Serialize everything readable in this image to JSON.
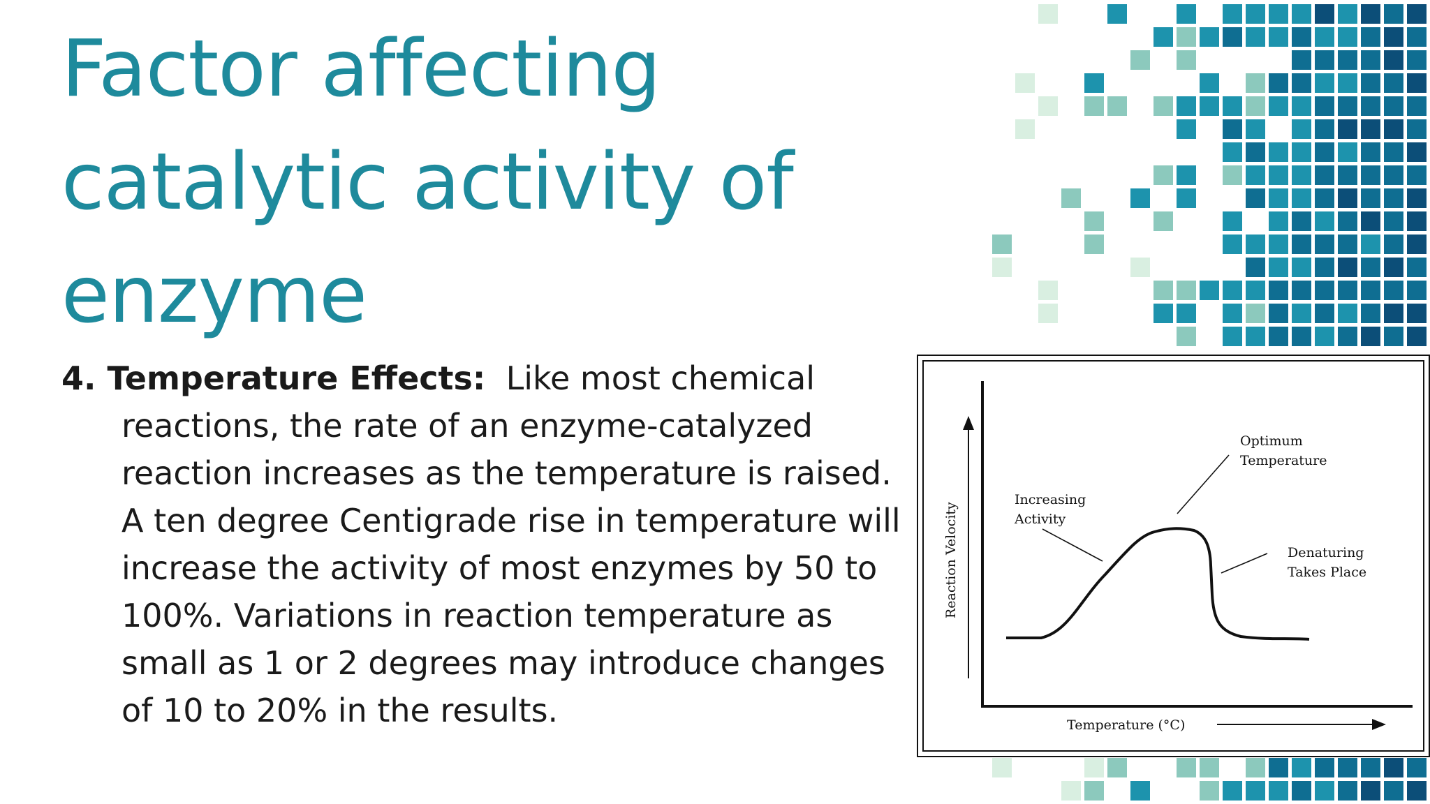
{
  "slide": {
    "title_lines": [
      "Factor affecting",
      "catalytic activity of",
      "enzyme"
    ],
    "point_label": "4. Temperature Effects:",
    "point_lines": [
      "Like most chemical",
      "reactions, the rate of an enzyme-catalyzed",
      "reaction increases as the temperature is raised.",
      "A ten degree Centigrade rise in temperature will",
      "increase the activity of most enzymes by 50 to",
      "100%. Variations in reaction temperature as",
      "small as 1 or 2 degrees may introduce changes",
      "of 10 to 20% in the results."
    ]
  },
  "colors": {
    "title": "#1e8a9c",
    "text": "#1a1a1a",
    "mosaic": [
      "#d9efe1",
      "#8cc9bd",
      "#1d93ad",
      "#0f6e92",
      "#0c4e78"
    ]
  },
  "figure": {
    "y_axis_label": "Reaction Velocity",
    "x_axis_label": "Temperature (°C)",
    "annotations": {
      "increasing": [
        "Increasing",
        "Activity"
      ],
      "optimum": [
        "Optimum",
        "Temperature"
      ],
      "denaturing": [
        "Denaturing",
        "Takes Place"
      ]
    }
  }
}
